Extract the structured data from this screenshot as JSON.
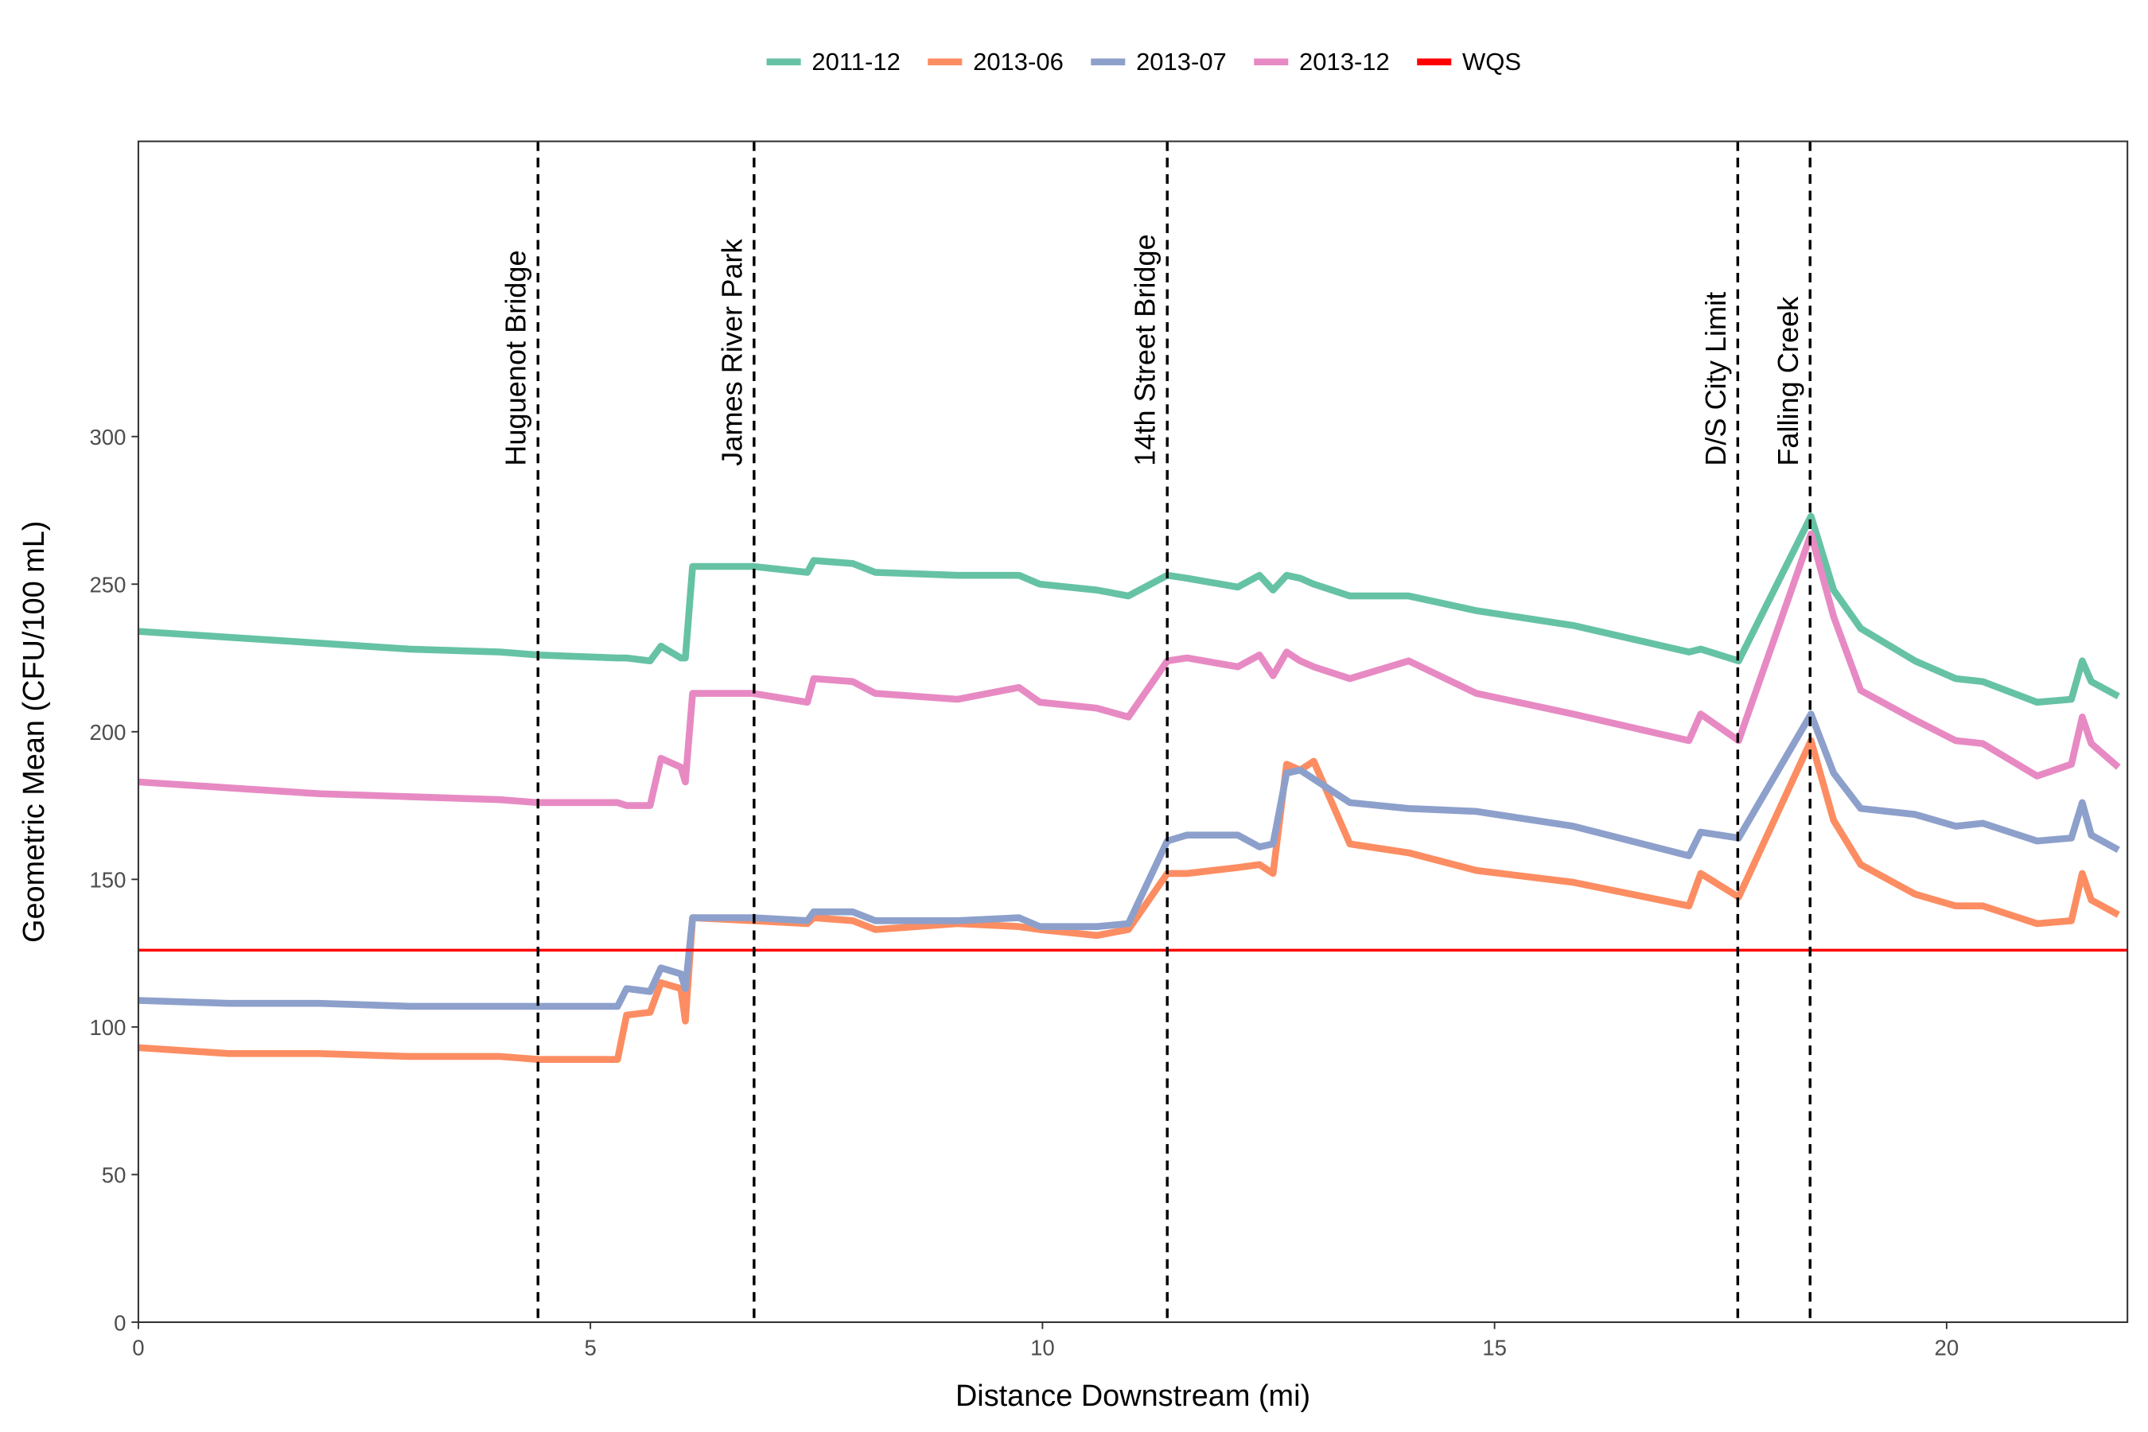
{
  "chart_data": {
    "type": "line",
    "x_label": "Distance Downstream (mi)",
    "y_label": "Geometric Mean (CFU/100 mL)",
    "xlim": [
      0,
      22
    ],
    "xticks": [
      0,
      5,
      10,
      15,
      20
    ],
    "ylim": [
      0,
      400
    ],
    "yticks": [
      0,
      50,
      100,
      150,
      200,
      250,
      300
    ],
    "legend_position": "top",
    "x": [
      0,
      1,
      2,
      3,
      4,
      4.42,
      5.3,
      5.4,
      5.66,
      5.78,
      6.0,
      6.05,
      6.13,
      6.8,
      7.4,
      7.47,
      7.9,
      8.15,
      9.06,
      9.74,
      9.97,
      10.6,
      10.95,
      11.38,
      11.6,
      12.16,
      12.4,
      12.55,
      12.7,
      12.85,
      13.0,
      13.4,
      14.05,
      14.8,
      15.87,
      17.15,
      17.28,
      17.7,
      18.5,
      18.75,
      19.05,
      19.65,
      20.1,
      20.4,
      21.0,
      21.38,
      21.5,
      21.6,
      21.9
    ],
    "series": [
      {
        "name": "2011-12",
        "color": "#66c2a5",
        "values": [
          234,
          232,
          230,
          228,
          227,
          226,
          225,
          225,
          224,
          229,
          225,
          225,
          256,
          256,
          254,
          258,
          257,
          254,
          253,
          253,
          250,
          248,
          246,
          253,
          252,
          249,
          253,
          248,
          253,
          252,
          250,
          246,
          246,
          241,
          236,
          227,
          228,
          224,
          273,
          248,
          235,
          224,
          218,
          217,
          210,
          211,
          224,
          217,
          212
        ]
      },
      {
        "name": "2013-06",
        "color": "#fc8d62",
        "values": [
          93,
          91,
          91,
          90,
          90,
          89,
          89,
          104,
          105,
          115,
          113,
          102,
          137,
          136,
          135,
          137,
          136,
          133,
          135,
          134,
          133,
          131,
          133,
          152,
          152,
          154,
          155,
          152,
          189,
          187,
          190,
          162,
          159,
          153,
          149,
          141,
          152,
          144,
          197,
          170,
          155,
          145,
          141,
          141,
          135,
          136,
          152,
          143,
          138
        ]
      },
      {
        "name": "2013-07",
        "color": "#8da0cb",
        "values": [
          109,
          108,
          108,
          107,
          107,
          107,
          107,
          113,
          112,
          120,
          118,
          113,
          137,
          137,
          136,
          139,
          139,
          136,
          136,
          137,
          134,
          134,
          135,
          163,
          165,
          165,
          161,
          162,
          186,
          187,
          184,
          176,
          174,
          173,
          168,
          158,
          166,
          164,
          206,
          186,
          174,
          172,
          168,
          169,
          163,
          164,
          176,
          165,
          160
        ]
      },
      {
        "name": "2013-12",
        "color": "#e78ac3",
        "values": [
          183,
          181,
          179,
          178,
          177,
          176,
          176,
          175,
          175,
          191,
          188,
          183,
          213,
          213,
          210,
          218,
          217,
          213,
          211,
          215,
          210,
          208,
          205,
          224,
          225,
          222,
          226,
          219,
          227,
          224,
          222,
          218,
          224,
          213,
          206,
          197,
          206,
          197,
          267,
          239,
          214,
          204,
          197,
          196,
          185,
          189,
          205,
          196,
          188
        ]
      }
    ],
    "reference_lines": [
      {
        "name": "WQS",
        "color": "#ff0000",
        "value": 126
      }
    ],
    "sites": [
      {
        "label": "Huguenot Bridge",
        "x": 4.42
      },
      {
        "label": "James River Park",
        "x": 6.81
      },
      {
        "label": "14th Street Bridge",
        "x": 11.38
      },
      {
        "label": "D/S City Limit",
        "x": 17.69
      },
      {
        "label": "Falling Creek",
        "x": 18.49
      }
    ]
  }
}
